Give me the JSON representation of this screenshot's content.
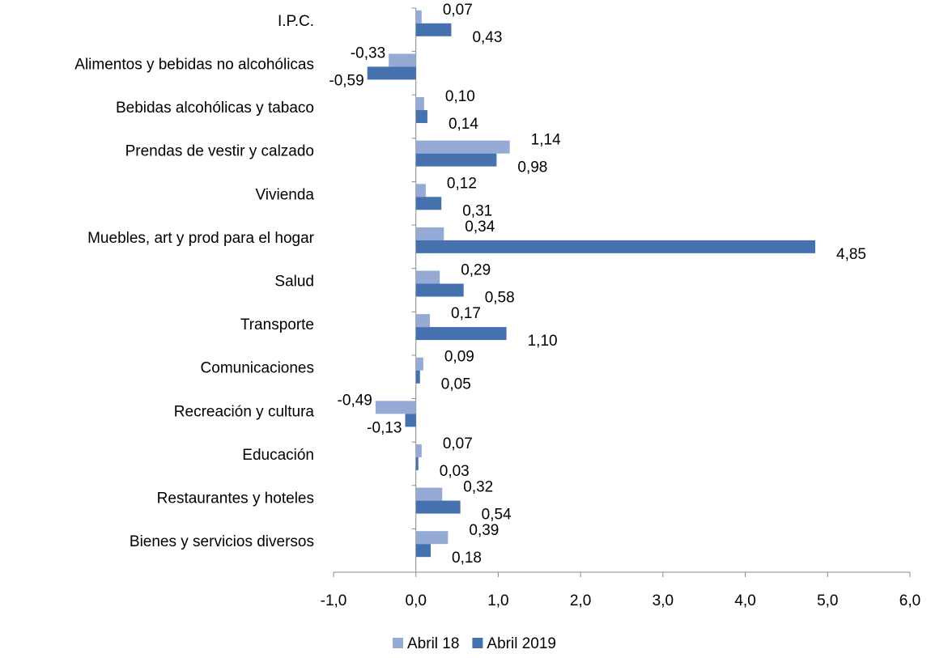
{
  "chart_data": {
    "type": "hbar",
    "categories": [
      "I.P.C.",
      "Alimentos y bebidas no alcohólicas",
      "Bebidas alcohólicas y tabaco",
      "Prendas de vestir y calzado",
      "Vivienda",
      "Muebles, art y prod para el hogar",
      "Salud",
      "Transporte",
      "Comunicaciones",
      "Recreación y cultura",
      "Educación",
      "Restaurantes y hoteles",
      "Bienes y servicios diversos"
    ],
    "series": [
      {
        "name": "Abril 18",
        "color": "#95abd6",
        "values": [
          0.07,
          -0.33,
          0.1,
          1.14,
          0.12,
          0.34,
          0.29,
          0.17,
          0.09,
          -0.49,
          0.07,
          0.32,
          0.39
        ],
        "value_labels": [
          "0,07",
          "-0,33",
          "0,10",
          "1,14",
          "0,12",
          "0,34",
          "0,29",
          "0,17",
          "0,09",
          "-0,49",
          "0,07",
          "0,32",
          "0,39"
        ]
      },
      {
        "name": "Abril 2019",
        "color": "#4572ae",
        "values": [
          0.43,
          -0.59,
          0.14,
          0.98,
          0.31,
          4.85,
          0.58,
          1.1,
          0.05,
          -0.13,
          0.03,
          0.54,
          0.18
        ],
        "value_labels": [
          "0,43",
          "-0,59",
          "0,14",
          "0,98",
          "0,31",
          "4,85",
          "0,58",
          "1,10",
          "0,05",
          "-0,13",
          "0,03",
          "0,54",
          "0,18"
        ]
      }
    ],
    "xlim": [
      -1,
      6
    ],
    "xticks": [
      {
        "value": -1,
        "label": "-1,0"
      },
      {
        "value": 0,
        "label": "0,0"
      },
      {
        "value": 1,
        "label": "1,0"
      },
      {
        "value": 2,
        "label": "2,0"
      },
      {
        "value": 3,
        "label": "3,0"
      },
      {
        "value": 4,
        "label": "4,0"
      },
      {
        "value": 5,
        "label": "5,0"
      },
      {
        "value": 6,
        "label": "6,0"
      }
    ],
    "legend": "bottom"
  }
}
